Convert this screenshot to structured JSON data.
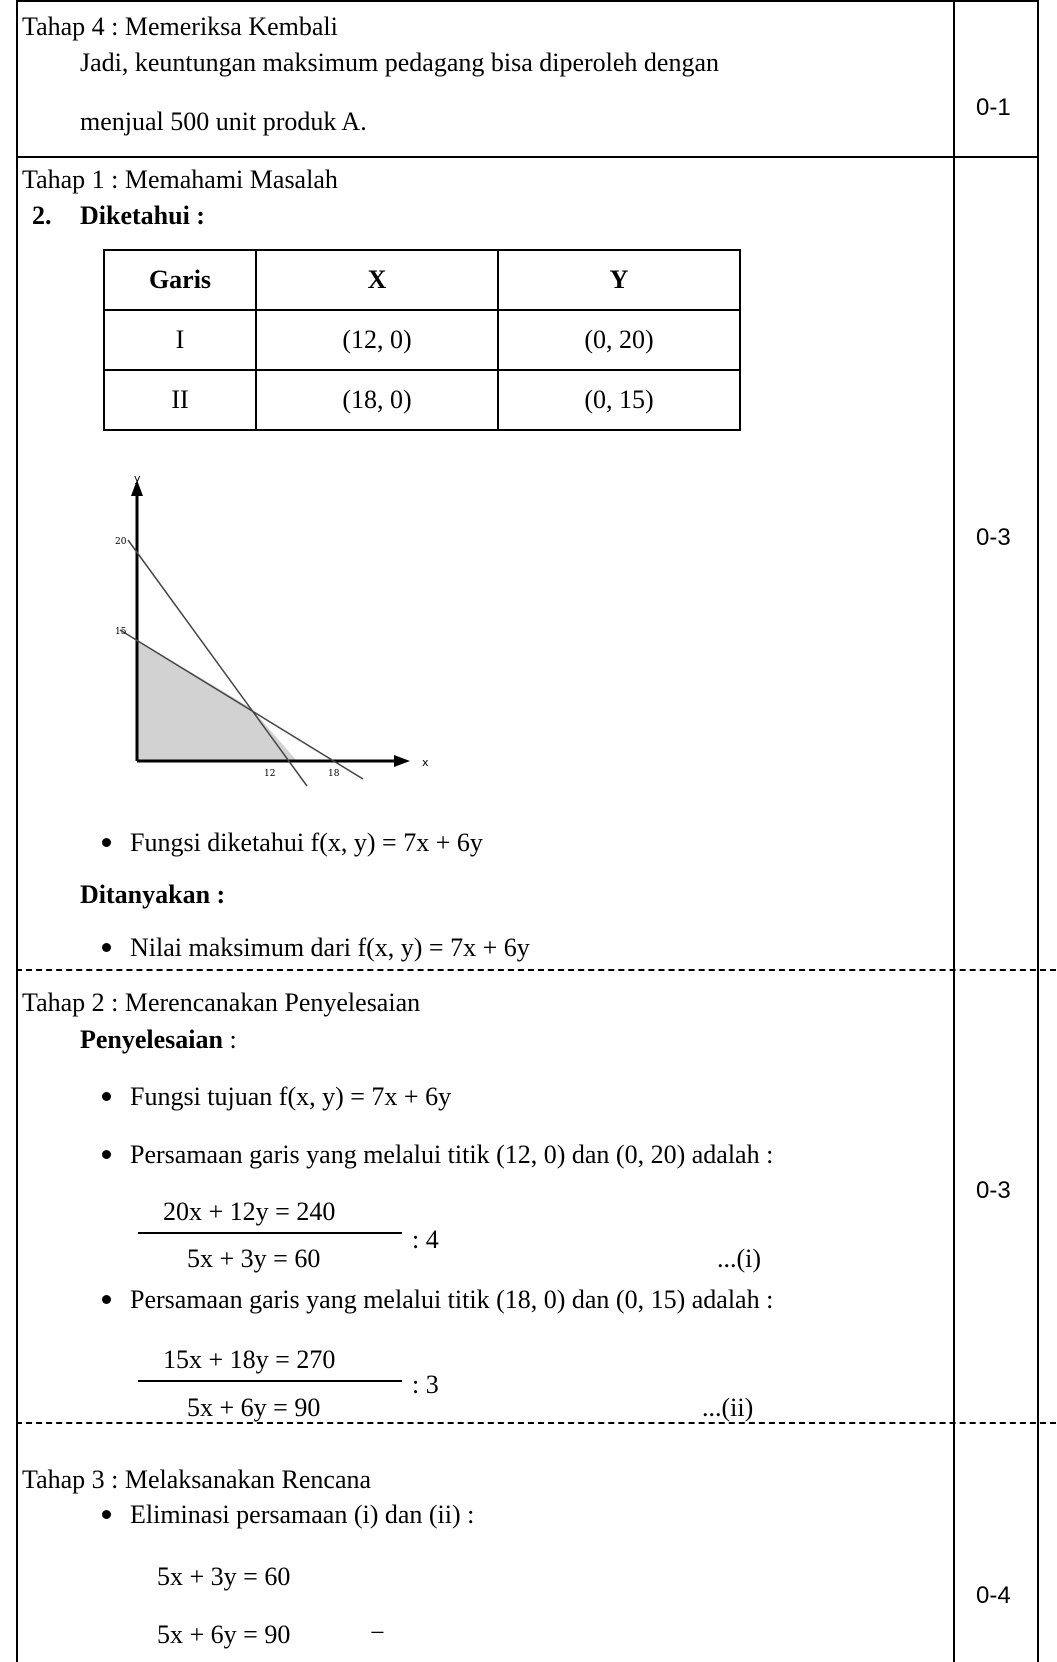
{
  "rows": [
    {
      "stage": "Tahap 4 : Memeriksa Kembali",
      "lines": [
        "Jadi, keuntungan maksimum pedagang bisa diperoleh dengan",
        "menjual 500 unit produk A."
      ],
      "score": "0-1"
    },
    {
      "stage": "Tahap 1 : Memahami Masalah",
      "number": "2.",
      "known_label": "Diketahui :",
      "table": {
        "headers": [
          "Garis",
          "X",
          "Y"
        ],
        "rows": [
          [
            "I",
            "(12, 0)",
            "(0, 20)"
          ],
          [
            "II",
            "(18, 0)",
            "(0, 15)"
          ]
        ]
      },
      "graph": {
        "x_axis_label": "x",
        "y_axis_label": "y",
        "y_ticks": [
          "20",
          "15"
        ],
        "x_ticks": [
          "12",
          "18"
        ]
      },
      "function_known": "Fungsi diketahui f(x, y) = 7x + 6y",
      "asked_label": "Ditanyakan :",
      "asked_item": "Nilai maksimum dari f(x, y) = 7x + 6y",
      "score": "0-3"
    },
    {
      "stage": "Tahap 2 : Merencanakan Penyelesaian",
      "solution_label": "Penyelesaian",
      "solution_colon": ":",
      "bullet1": "Fungsi tujuan f(x, y) = 7x + 6y",
      "bullet2": "Persamaan garis yang melalui titik (12, 0) dan (0, 20) adalah :",
      "eq1_top": "20x + 12y = 240",
      "eq1_div": ": 4",
      "eq1_bottom": "5x + 3y = 60",
      "eq1_ref": "...(i)",
      "bullet3": "Persamaan garis yang melalui titik (18, 0) dan (0, 15) adalah :",
      "eq2_top": "15x + 18y = 270",
      "eq2_div": ": 3",
      "eq2_bottom": "5x + 6y = 90",
      "eq2_ref": "...(ii)",
      "score": "0-3"
    },
    {
      "stage": "Tahap 3 : Melaksanakan Rencana",
      "bullet1": "Eliminasi persamaan (i) dan (ii) :",
      "eq_a": "5x + 3y = 60",
      "eq_b": "5x + 6y = 90",
      "minus": "−",
      "score": "0-4"
    }
  ]
}
